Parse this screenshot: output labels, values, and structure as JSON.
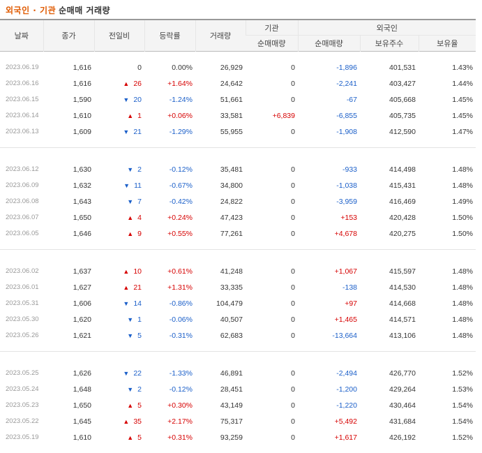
{
  "title": {
    "part1": "외국인 · 기관",
    "part2": "순매매 거래량"
  },
  "headers": {
    "date": "날짜",
    "close": "종가",
    "change": "전일비",
    "rate": "등락률",
    "volume": "거래량",
    "institution": "기관",
    "inst_net": "순매매량",
    "foreign": "외국인",
    "foreign_net": "순매매량",
    "holdings": "보유주수",
    "ratio": "보유율"
  },
  "groups": [
    [
      {
        "date": "2023.06.19",
        "close": "1,616",
        "dir": "none",
        "change": "0",
        "rate": "0.00%",
        "volume": "26,929",
        "inst": "0",
        "foreign": "-1,896",
        "holdings": "401,531",
        "ratio": "1.43%"
      },
      {
        "date": "2023.06.16",
        "close": "1,616",
        "dir": "up",
        "change": "26",
        "rate": "+1.64%",
        "volume": "24,642",
        "inst": "0",
        "foreign": "-2,241",
        "holdings": "403,427",
        "ratio": "1.44%"
      },
      {
        "date": "2023.06.15",
        "close": "1,590",
        "dir": "down",
        "change": "20",
        "rate": "-1.24%",
        "volume": "51,661",
        "inst": "0",
        "foreign": "-67",
        "holdings": "405,668",
        "ratio": "1.45%"
      },
      {
        "date": "2023.06.14",
        "close": "1,610",
        "dir": "up",
        "change": "1",
        "rate": "+0.06%",
        "volume": "33,581",
        "inst": "+6,839",
        "foreign": "-6,855",
        "holdings": "405,735",
        "ratio": "1.45%"
      },
      {
        "date": "2023.06.13",
        "close": "1,609",
        "dir": "down",
        "change": "21",
        "rate": "-1.29%",
        "volume": "55,955",
        "inst": "0",
        "foreign": "-1,908",
        "holdings": "412,590",
        "ratio": "1.47%"
      }
    ],
    [
      {
        "date": "2023.06.12",
        "close": "1,630",
        "dir": "down",
        "change": "2",
        "rate": "-0.12%",
        "volume": "35,481",
        "inst": "0",
        "foreign": "-933",
        "holdings": "414,498",
        "ratio": "1.48%"
      },
      {
        "date": "2023.06.09",
        "close": "1,632",
        "dir": "down",
        "change": "11",
        "rate": "-0.67%",
        "volume": "34,800",
        "inst": "0",
        "foreign": "-1,038",
        "holdings": "415,431",
        "ratio": "1.48%"
      },
      {
        "date": "2023.06.08",
        "close": "1,643",
        "dir": "down",
        "change": "7",
        "rate": "-0.42%",
        "volume": "24,822",
        "inst": "0",
        "foreign": "-3,959",
        "holdings": "416,469",
        "ratio": "1.49%"
      },
      {
        "date": "2023.06.07",
        "close": "1,650",
        "dir": "up",
        "change": "4",
        "rate": "+0.24%",
        "volume": "47,423",
        "inst": "0",
        "foreign": "+153",
        "holdings": "420,428",
        "ratio": "1.50%"
      },
      {
        "date": "2023.06.05",
        "close": "1,646",
        "dir": "up",
        "change": "9",
        "rate": "+0.55%",
        "volume": "77,261",
        "inst": "0",
        "foreign": "+4,678",
        "holdings": "420,275",
        "ratio": "1.50%"
      }
    ],
    [
      {
        "date": "2023.06.02",
        "close": "1,637",
        "dir": "up",
        "change": "10",
        "rate": "+0.61%",
        "volume": "41,248",
        "inst": "0",
        "foreign": "+1,067",
        "holdings": "415,597",
        "ratio": "1.48%"
      },
      {
        "date": "2023.06.01",
        "close": "1,627",
        "dir": "up",
        "change": "21",
        "rate": "+1.31%",
        "volume": "33,335",
        "inst": "0",
        "foreign": "-138",
        "holdings": "414,530",
        "ratio": "1.48%"
      },
      {
        "date": "2023.05.31",
        "close": "1,606",
        "dir": "down",
        "change": "14",
        "rate": "-0.86%",
        "volume": "104,479",
        "inst": "0",
        "foreign": "+97",
        "holdings": "414,668",
        "ratio": "1.48%"
      },
      {
        "date": "2023.05.30",
        "close": "1,620",
        "dir": "down",
        "change": "1",
        "rate": "-0.06%",
        "volume": "40,507",
        "inst": "0",
        "foreign": "+1,465",
        "holdings": "414,571",
        "ratio": "1.48%"
      },
      {
        "date": "2023.05.26",
        "close": "1,621",
        "dir": "down",
        "change": "5",
        "rate": "-0.31%",
        "volume": "62,683",
        "inst": "0",
        "foreign": "-13,664",
        "holdings": "413,106",
        "ratio": "1.48%"
      }
    ],
    [
      {
        "date": "2023.05.25",
        "close": "1,626",
        "dir": "down",
        "change": "22",
        "rate": "-1.33%",
        "volume": "46,891",
        "inst": "0",
        "foreign": "-2,494",
        "holdings": "426,770",
        "ratio": "1.52%"
      },
      {
        "date": "2023.05.24",
        "close": "1,648",
        "dir": "down",
        "change": "2",
        "rate": "-0.12%",
        "volume": "28,451",
        "inst": "0",
        "foreign": "-1,200",
        "holdings": "429,264",
        "ratio": "1.53%"
      },
      {
        "date": "2023.05.23",
        "close": "1,650",
        "dir": "up",
        "change": "5",
        "rate": "+0.30%",
        "volume": "43,149",
        "inst": "0",
        "foreign": "-1,220",
        "holdings": "430,464",
        "ratio": "1.54%"
      },
      {
        "date": "2023.05.22",
        "close": "1,645",
        "dir": "up",
        "change": "35",
        "rate": "+2.17%",
        "volume": "75,317",
        "inst": "0",
        "foreign": "+5,492",
        "holdings": "431,684",
        "ratio": "1.54%"
      },
      {
        "date": "2023.05.19",
        "close": "1,610",
        "dir": "up",
        "change": "5",
        "rate": "+0.31%",
        "volume": "93,259",
        "inst": "0",
        "foreign": "+1,617",
        "holdings": "426,192",
        "ratio": "1.52%"
      }
    ]
  ],
  "colors": {
    "up": "#d60000",
    "down": "#1b5fc9",
    "title_accent": "#e05a00"
  },
  "icons": {
    "up": "triangle-up-icon",
    "down": "triangle-down-icon"
  }
}
